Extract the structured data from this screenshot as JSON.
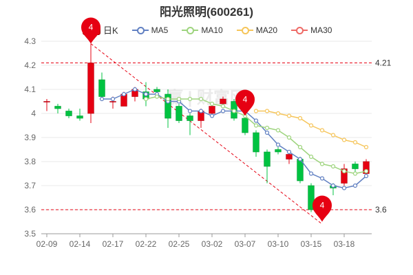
{
  "title": "阳光照明(600261)",
  "legend": {
    "k_label": "日K",
    "ma5_label": "MA5",
    "ma10_label": "MA10",
    "ma20_label": "MA20",
    "ma30_label": "MA30"
  },
  "watermark": "赢 | 财富网",
  "colors": {
    "up": "#e60012",
    "down": "#00c341",
    "ma5": "#6180c2",
    "ma10": "#9ed47e",
    "ma20": "#f6c559",
    "ma30": "#ee6a66",
    "marker": "#e60012",
    "grid": "#e8e8e8",
    "refline": "#e60012"
  },
  "chart_data": {
    "type": "candlestick",
    "title": "阳光照明(600261)",
    "ylim": [
      3.5,
      4.3
    ],
    "yticks": [
      "3.5",
      "3.6",
      "3.7",
      "3.8",
      "3.9",
      "4",
      "4.1",
      "4.2",
      "4.3"
    ],
    "xtick_labels": [
      {
        "index": 0,
        "label": "02-09"
      },
      {
        "index": 3,
        "label": "02-14"
      },
      {
        "index": 6,
        "label": "02-17"
      },
      {
        "index": 9,
        "label": "02-22"
      },
      {
        "index": 12,
        "label": "02-25"
      },
      {
        "index": 15,
        "label": "03-02"
      },
      {
        "index": 18,
        "label": "03-07"
      },
      {
        "index": 21,
        "label": "03-10"
      },
      {
        "index": 24,
        "label": "03-15"
      },
      {
        "index": 27,
        "label": "03-18"
      }
    ],
    "candles": [
      {
        "o": 4.05,
        "c": 4.05,
        "h": 4.06,
        "l": 4.01
      },
      {
        "o": 4.03,
        "c": 4.02,
        "h": 4.04,
        "l": 4.0
      },
      {
        "o": 4.01,
        "c": 3.99,
        "h": 4.02,
        "l": 3.98
      },
      {
        "o": 3.99,
        "c": 3.98,
        "h": 4.02,
        "l": 3.97
      },
      {
        "o": 4.0,
        "c": 4.21,
        "h": 4.29,
        "l": 3.96
      },
      {
        "o": 4.14,
        "c": 4.07,
        "h": 4.17,
        "l": 4.06
      },
      {
        "o": 4.05,
        "c": 4.05,
        "h": 4.07,
        "l": 4.02
      },
      {
        "o": 4.03,
        "c": 4.08,
        "h": 4.09,
        "l": 4.03
      },
      {
        "o": 4.07,
        "c": 4.1,
        "h": 4.11,
        "l": 4.05
      },
      {
        "o": 4.09,
        "c": 4.06,
        "h": 4.13,
        "l": 4.03
      },
      {
        "o": 4.1,
        "c": 4.09,
        "h": 4.11,
        "l": 4.08
      },
      {
        "o": 4.08,
        "c": 3.98,
        "h": 4.1,
        "l": 3.94
      },
      {
        "o": 4.03,
        "c": 3.97,
        "h": 4.04,
        "l": 3.96
      },
      {
        "o": 3.99,
        "c": 3.97,
        "h": 4.0,
        "l": 3.91
      },
      {
        "o": 3.97,
        "c": 4.01,
        "h": 4.02,
        "l": 3.94
      },
      {
        "o": 4.0,
        "c": 4.03,
        "h": 4.04,
        "l": 3.99
      },
      {
        "o": 4.04,
        "c": 4.06,
        "h": 4.07,
        "l": 4.03
      },
      {
        "o": 4.05,
        "c": 3.98,
        "h": 4.06,
        "l": 3.97
      },
      {
        "o": 3.98,
        "c": 3.92,
        "h": 4.0,
        "l": 3.91
      },
      {
        "o": 3.92,
        "c": 3.84,
        "h": 3.93,
        "l": 3.82
      },
      {
        "o": 3.84,
        "c": 3.78,
        "h": 3.85,
        "l": 3.71
      },
      {
        "o": 3.85,
        "c": 3.84,
        "h": 3.86,
        "l": 3.83
      },
      {
        "o": 3.81,
        "c": 3.83,
        "h": 3.84,
        "l": 3.79
      },
      {
        "o": 3.81,
        "c": 3.72,
        "h": 3.82,
        "l": 3.71
      },
      {
        "o": 3.7,
        "c": 3.6,
        "h": 3.71,
        "l": 3.59
      },
      {
        "o": 3.6,
        "c": 3.6,
        "h": 3.61,
        "l": 3.59
      },
      {
        "o": 3.7,
        "c": 3.69,
        "h": 3.71,
        "l": 3.66
      },
      {
        "o": 3.71,
        "c": 3.77,
        "h": 3.79,
        "l": 3.7
      },
      {
        "o": 3.79,
        "c": 3.77,
        "h": 3.8,
        "l": 3.75
      },
      {
        "o": 3.75,
        "c": 3.8,
        "h": 3.81,
        "l": 3.74
      }
    ],
    "series": [
      {
        "name": "MA5",
        "values": [
          null,
          null,
          null,
          null,
          null,
          4.06,
          4.06,
          4.08,
          4.1,
          4.08,
          4.08,
          4.05,
          4.05,
          4.01,
          4.01,
          3.99,
          4.01,
          4.01,
          4.01,
          3.97,
          3.92,
          3.87,
          3.84,
          3.81,
          3.75,
          3.73,
          3.7,
          3.69,
          3.7,
          3.74
        ]
      },
      {
        "name": "MA10",
        "values": [
          null,
          null,
          null,
          null,
          null,
          null,
          null,
          null,
          null,
          4.06,
          4.07,
          4.06,
          4.06,
          4.06,
          4.06,
          4.04,
          4.03,
          4.01,
          3.99,
          3.95,
          3.94,
          3.93,
          3.9,
          3.86,
          3.82,
          3.79,
          3.78,
          3.76,
          3.75,
          3.76
        ]
      },
      {
        "name": "MA20",
        "values": [
          null,
          null,
          null,
          null,
          null,
          null,
          null,
          null,
          null,
          null,
          null,
          null,
          null,
          null,
          null,
          null,
          null,
          null,
          null,
          4.01,
          4.01,
          4.0,
          3.99,
          3.98,
          3.95,
          3.93,
          3.91,
          3.89,
          3.88,
          3.86
        ]
      },
      {
        "name": "MA30",
        "values": []
      }
    ],
    "ref_lines": [
      {
        "value": 4.21,
        "label": "4.21"
      },
      {
        "value": 3.6,
        "label": "3.6"
      }
    ],
    "markers": [
      {
        "index": 4,
        "value": 4.29,
        "label": "4"
      },
      {
        "index": 18,
        "value": 3.99,
        "label": "4"
      },
      {
        "index": 25,
        "value": 3.55,
        "label": "4"
      }
    ],
    "trend_line": {
      "from": {
        "index": 4,
        "value": 4.29
      },
      "to": {
        "index": 25,
        "value": 3.54
      }
    }
  }
}
